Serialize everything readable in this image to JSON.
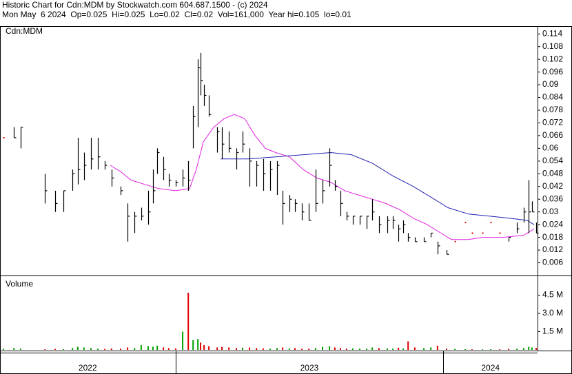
{
  "chart_data": {
    "type": "ohlc",
    "title": "Historic Chart for Cdn:MDM by Stockwatch.com 604.687.1500 - (c) 2024",
    "subtitle": "Mon May  6 2024  Op=0.025  Hi=0.025  Lo=0.02  Cl=0.02  Vol=161,000  Year hi=0.105  lo=0.01",
    "price_label": "Cdn:MDM",
    "volume_label": "Volume",
    "bar_color": "#000000",
    "flat_color": "#e00000",
    "up_color": "#00a000",
    "down_color": "#e00000",
    "xlim": [
      2022.343,
      2024.353
    ],
    "xticks": [
      {
        "value": 2022.671,
        "label": "2022"
      },
      {
        "value": 2023.5,
        "label": "2023"
      },
      {
        "value": 2024.177,
        "label": "2024"
      }
    ],
    "year_dividers": [
      2023,
      2024
    ],
    "ylim": [
      0,
      0.117
    ],
    "yticks": [
      0.006,
      0.012,
      0.018,
      0.024,
      0.03,
      0.036,
      0.042,
      0.048,
      0.054,
      0.06,
      0.066,
      0.072,
      0.078,
      0.084,
      0.09,
      0.096,
      0.102,
      0.108,
      0.114
    ],
    "volume_ylim": [
      0,
      6000000
    ],
    "volume_yticks": [
      {
        "value": 1500000,
        "label": "1.5 M"
      },
      {
        "value": 3000000,
        "label": "3.0 M"
      },
      {
        "value": 4500000,
        "label": "4.5 M"
      }
    ],
    "x": [
      2022.356,
      2022.395,
      2022.42,
      2022.511,
      2022.549,
      2022.58,
      2022.614,
      2022.634,
      2022.657,
      2022.683,
      2022.709,
      2022.735,
      2022.76,
      2022.794,
      2022.82,
      2022.846,
      2022.871,
      2022.897,
      2022.915,
      2022.931,
      2022.954,
      2022.974,
      2023.0,
      2023.026,
      2023.047,
      2023.065,
      2023.083,
      2023.093,
      2023.106,
      2023.124,
      2023.155,
      2023.173,
      2023.199,
      2023.227,
      2023.25,
      2023.276,
      2023.302,
      2023.327,
      2023.353,
      2023.379,
      2023.4,
      2023.425,
      2023.446,
      2023.472,
      2023.498,
      2023.523,
      2023.549,
      2023.575,
      2023.595,
      2023.616,
      2023.639,
      2023.662,
      2023.688,
      2023.714,
      2023.735,
      2023.76,
      2023.791,
      2023.812,
      2023.833,
      2023.851,
      2023.869,
      2023.894,
      2023.928,
      2023.954,
      2023.979,
      2024.013,
      2024.044,
      2024.083,
      2024.108,
      2024.147,
      2024.178,
      2024.211,
      2024.245,
      2024.276,
      2024.301,
      2024.32,
      2024.332,
      2024.348
    ],
    "high": [
      0.065,
      0.07,
      0.07,
      0.048,
      0.04,
      0.04,
      0.05,
      0.065,
      0.058,
      0.065,
      0.065,
      0.054,
      0.05,
      0.042,
      0.034,
      0.03,
      0.032,
      0.04,
      0.05,
      0.06,
      0.056,
      0.048,
      0.045,
      0.05,
      0.054,
      0.08,
      0.102,
      0.105,
      0.09,
      0.085,
      0.07,
      0.07,
      0.068,
      0.06,
      0.068,
      0.06,
      0.054,
      0.055,
      0.054,
      0.054,
      0.04,
      0.038,
      0.036,
      0.034,
      0.034,
      0.05,
      0.045,
      0.06,
      0.045,
      0.04,
      0.03,
      0.028,
      0.028,
      0.028,
      0.036,
      0.028,
      0.028,
      0.028,
      0.024,
      0.026,
      0.02,
      0.018,
      0.018,
      0.02,
      0.016,
      0.012,
      0.016,
      0.025,
      0.02,
      0.02,
      0.025,
      0.02,
      0.018,
      0.025,
      0.032,
      0.045,
      0.035,
      0.025
    ],
    "low": [
      0.065,
      0.065,
      0.06,
      0.034,
      0.03,
      0.03,
      0.04,
      0.043,
      0.045,
      0.05,
      0.05,
      0.05,
      0.042,
      0.038,
      0.016,
      0.02,
      0.026,
      0.024,
      0.034,
      0.048,
      0.045,
      0.042,
      0.042,
      0.042,
      0.04,
      0.06,
      0.07,
      0.085,
      0.08,
      0.075,
      0.058,
      0.055,
      0.058,
      0.05,
      0.058,
      0.042,
      0.042,
      0.04,
      0.04,
      0.038,
      0.024,
      0.03,
      0.03,
      0.026,
      0.026,
      0.03,
      0.034,
      0.042,
      0.04,
      0.028,
      0.026,
      0.024,
      0.024,
      0.022,
      0.026,
      0.02,
      0.02,
      0.022,
      0.016,
      0.02,
      0.016,
      0.016,
      0.016,
      0.018,
      0.01,
      0.01,
      0.016,
      0.025,
      0.02,
      0.02,
      0.025,
      0.02,
      0.016,
      0.02,
      0.025,
      0.02,
      0.03,
      0.02
    ],
    "close": [
      0.065,
      0.065,
      0.07,
      0.04,
      0.034,
      0.04,
      0.048,
      0.05,
      0.052,
      0.055,
      0.056,
      0.052,
      0.046,
      0.04,
      0.028,
      0.028,
      0.028,
      0.03,
      0.04,
      0.058,
      0.05,
      0.045,
      0.044,
      0.046,
      0.045,
      0.075,
      0.098,
      0.092,
      0.085,
      0.076,
      0.068,
      0.062,
      0.06,
      0.058,
      0.062,
      0.054,
      0.052,
      0.048,
      0.05,
      0.052,
      0.034,
      0.036,
      0.034,
      0.03,
      0.026,
      0.034,
      0.04,
      0.052,
      0.042,
      0.034,
      0.028,
      0.028,
      0.028,
      0.028,
      0.03,
      0.024,
      0.026,
      0.026,
      0.022,
      0.024,
      0.018,
      0.016,
      0.016,
      0.02,
      0.014,
      0.01,
      0.016,
      0.025,
      0.02,
      0.02,
      0.025,
      0.02,
      0.018,
      0.022,
      0.03,
      0.03,
      0.03,
      0.02
    ],
    "volume": [
      100000,
      150000,
      100000,
      50000,
      80000,
      60000,
      150000,
      250000,
      200000,
      150000,
      100000,
      80000,
      120000,
      100000,
      200000,
      150000,
      400000,
      300000,
      250000,
      350000,
      200000,
      150000,
      120000,
      1500000,
      4700000,
      800000,
      900000,
      600000,
      400000,
      300000,
      200000,
      250000,
      200000,
      150000,
      180000,
      200000,
      150000,
      120000,
      100000,
      150000,
      200000,
      120000,
      150000,
      100000,
      100000,
      150000,
      250000,
      300000,
      200000,
      150000,
      100000,
      120000,
      100000,
      100000,
      200000,
      150000,
      120000,
      100000,
      180000,
      120000,
      700000,
      200000,
      150000,
      200000,
      350000,
      100000,
      80000,
      60000,
      50000,
      50000,
      60000,
      50000,
      80000,
      100000,
      150000,
      250000,
      200000,
      161000
    ],
    "moving_averages": [
      {
        "color": "#e020e0",
        "x": [
          2022.755,
          2022.794,
          2022.833,
          2022.884,
          2022.936,
          2023.0,
          2023.052,
          2023.077,
          2023.103,
          2023.142,
          2023.181,
          2023.219,
          2023.258,
          2023.297,
          2023.335,
          2023.374,
          2023.425,
          2023.477,
          2023.528,
          2023.58,
          2023.632,
          2023.683,
          2023.735,
          2023.786,
          2023.838,
          2023.889,
          2023.941,
          2023.992,
          2024.031,
          2024.095,
          2024.147,
          2024.224,
          2024.301,
          2024.34
        ],
        "values": [
          0.052,
          0.049,
          0.045,
          0.043,
          0.041,
          0.04,
          0.041,
          0.05,
          0.063,
          0.07,
          0.074,
          0.076,
          0.074,
          0.066,
          0.06,
          0.058,
          0.056,
          0.05,
          0.046,
          0.044,
          0.04,
          0.038,
          0.036,
          0.034,
          0.031,
          0.027,
          0.024,
          0.02,
          0.017,
          0.017,
          0.018,
          0.018,
          0.019,
          0.022
        ]
      },
      {
        "color": "#2020b0",
        "x": [
          2023.168,
          2023.271,
          2023.374,
          2023.477,
          2023.58,
          2023.657,
          2023.735,
          2023.812,
          2023.889,
          2023.967,
          2024.018,
          2024.095,
          2024.173,
          2024.25,
          2024.314,
          2024.34
        ],
        "values": [
          0.055,
          0.055,
          0.056,
          0.057,
          0.058,
          0.057,
          0.053,
          0.047,
          0.042,
          0.036,
          0.032,
          0.029,
          0.028,
          0.027,
          0.026,
          0.024
        ]
      }
    ]
  }
}
